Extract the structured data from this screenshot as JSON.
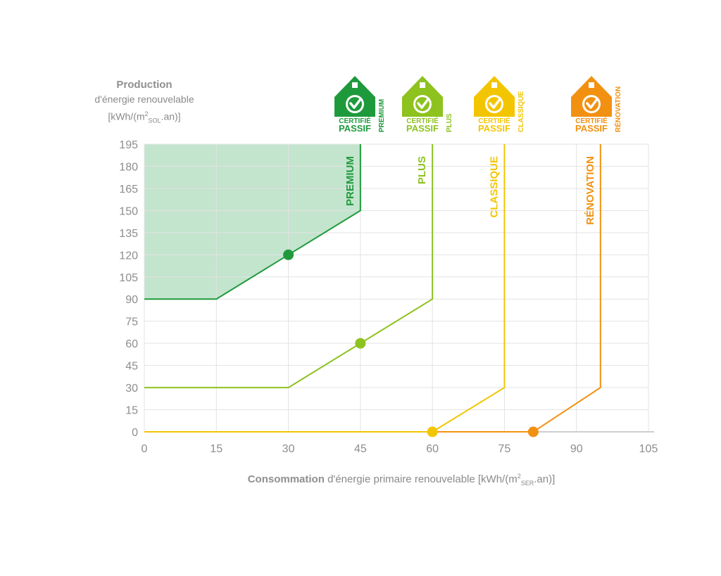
{
  "y_axis_title": {
    "bold": "Production",
    "line2": "d'énergie renouvelable",
    "unit_prefix": "[kWh/(m",
    "unit_sup": "2",
    "unit_sub": "SOL",
    "unit_suffix": ".an)]"
  },
  "x_axis_title": {
    "bold": "Consommation",
    "rest": "d'énergie primaire renouvelable",
    "unit_prefix": "[kWh/(m",
    "unit_sup": "2",
    "unit_sub": "SER",
    "unit_suffix": ".an)]"
  },
  "badges": [
    {
      "top": "CERTIFIÉ",
      "bottom": "PASSIF",
      "side": "PREMIUM",
      "color": "#1e9a3c"
    },
    {
      "top": "CERTIFIÉ",
      "bottom": "PASSIF",
      "side": "PLUS",
      "color": "#8dc21f"
    },
    {
      "top": "CERTIFIÉ",
      "bottom": "PASSIF",
      "side": "CLASSIQUE",
      "color": "#f3c500"
    },
    {
      "top": "CERTIFIÉ",
      "bottom": "PASSIF",
      "side": "RÉNOVATION",
      "color": "#f29111"
    }
  ],
  "chart_data": {
    "type": "line",
    "xlim": [
      0,
      105
    ],
    "ylim": [
      0,
      195
    ],
    "x_ticks": [
      0,
      15,
      30,
      45,
      60,
      75,
      90,
      105
    ],
    "y_ticks": [
      0,
      15,
      30,
      45,
      60,
      75,
      90,
      105,
      120,
      135,
      150,
      165,
      180,
      195
    ],
    "grid": true,
    "series": [
      {
        "name": "PREMIUM",
        "color": "#1e9a3c",
        "points": [
          [
            0,
            90
          ],
          [
            15,
            90
          ],
          [
            45,
            150
          ],
          [
            45,
            195
          ]
        ],
        "marker": [
          30,
          120
        ],
        "shaded_region": true,
        "fill_color": "#b9dfc4"
      },
      {
        "name": "PLUS",
        "color": "#8dc21f",
        "points": [
          [
            0,
            30
          ],
          [
            30,
            30
          ],
          [
            60,
            90
          ],
          [
            60,
            195
          ]
        ],
        "marker": [
          45,
          60
        ]
      },
      {
        "name": "CLASSIQUE",
        "color": "#f3c500",
        "points": [
          [
            0,
            0
          ],
          [
            60,
            0
          ],
          [
            75,
            30
          ],
          [
            75,
            195
          ]
        ],
        "marker": [
          60,
          0
        ]
      },
      {
        "name": "RÉNOVATION",
        "color": "#f29111",
        "points": [
          [
            60,
            0
          ],
          [
            81,
            0
          ],
          [
            95,
            30
          ],
          [
            95,
            195
          ]
        ],
        "marker": [
          81,
          0
        ]
      }
    ]
  }
}
